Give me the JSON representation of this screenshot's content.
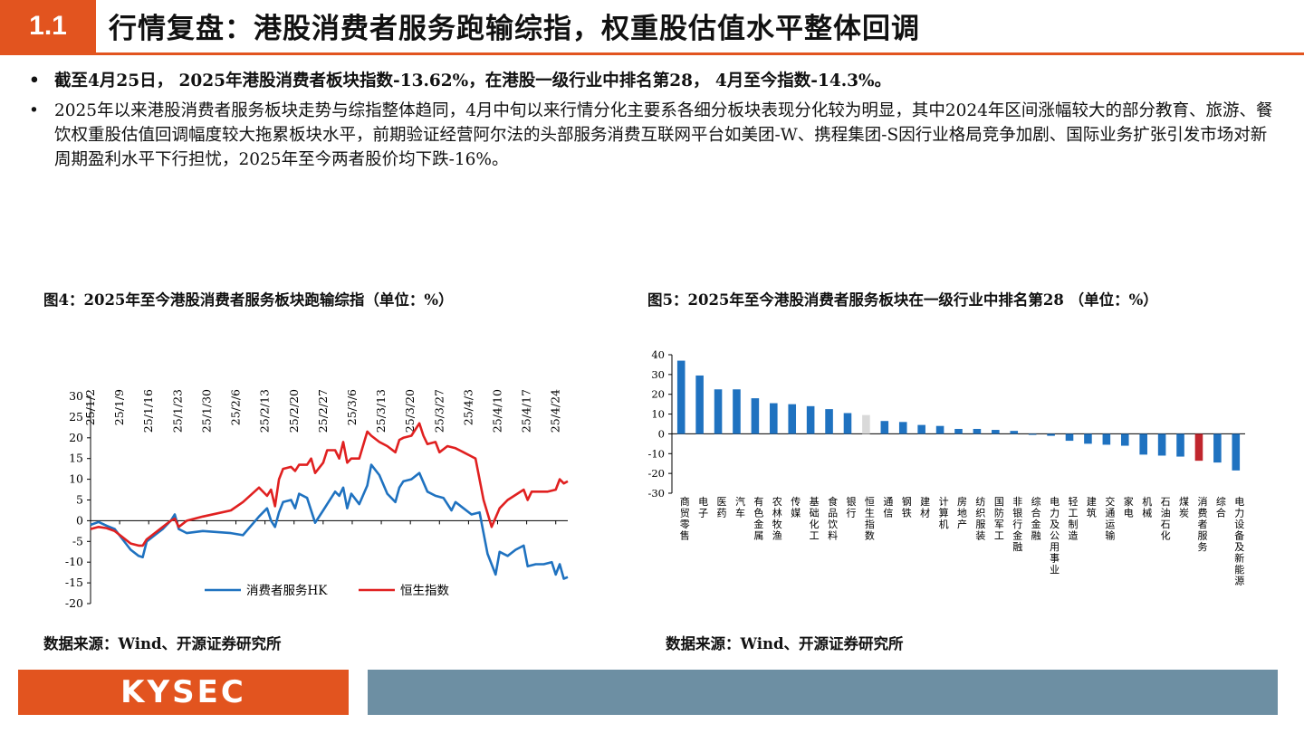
{
  "header": {
    "section_num": "1.1",
    "title": "行情复盘：港股消费者服务跑输综指，权重股估值水平整体回调"
  },
  "bullets": [
    "截至4月25日， 2025年港股消费者板块指数-13.62%，在港股一级行业中排名第28， 4月至今指数-14.3%。",
    "2025年以来港股消费者服务板块走势与综指整体趋同，4月中旬以来行情分化主要系各细分板块表现分化较为明显，其中2024年区间涨幅较大的部分教育、旅游、餐饮权重股估值回调幅度较大拖累板块水平，前期验证经营阿尔法的头部服务消费互联网平台如美团-W、携程集团-S因行业格局竞争加剧、国际业务扩张引发市场对新周期盈利水平下行担忧，2025年至今两者股价均下跌-16%。"
  ],
  "figure4": {
    "title": "图4：2025年至今港股消费者服务板块跑输综指（单位：%）",
    "source": "数据来源：Wind、开源证券研究所"
  },
  "figure5": {
    "title": "图5：2025年至今港股消费者服务板块在一级行业中排名第28 （单位：%）",
    "source": "数据来源：Wind、开源证券研究所"
  },
  "footer": {
    "logo": "KYSEC"
  },
  "chart_data": [
    {
      "type": "line",
      "x_tick_labels": [
        "25/1/2",
        "25/1/9",
        "25/1/16",
        "25/1/23",
        "25/1/30",
        "25/2/6",
        "25/2/13",
        "25/2/20",
        "25/2/27",
        "25/3/6",
        "25/3/13",
        "25/3/20",
        "25/3/27",
        "25/4/3",
        "25/4/10",
        "25/4/17",
        "25/4/24"
      ],
      "ylim": [
        -20,
        30
      ],
      "y_ticks": [
        30,
        25,
        20,
        15,
        10,
        5,
        0,
        -5,
        -10,
        -15,
        -20
      ],
      "legend_position": "bottom",
      "series": [
        {
          "name": "消费者服务HK",
          "color": "#1f72c0",
          "points": [
            [
              0,
              -1
            ],
            [
              2,
              -0.3
            ],
            [
              4,
              -1.2
            ],
            [
              6,
              -2
            ],
            [
              8,
              -4.5
            ],
            [
              10,
              -7
            ],
            [
              12,
              -8.5
            ],
            [
              13,
              -8.8
            ],
            [
              14,
              -5
            ],
            [
              16,
              -3.5
            ],
            [
              18,
              -2
            ],
            [
              20,
              0
            ],
            [
              21,
              1.5
            ],
            [
              22,
              -2
            ],
            [
              24,
              -3
            ],
            [
              28,
              -2.5
            ],
            [
              35,
              -3
            ],
            [
              38,
              -3.5
            ],
            [
              42,
              1
            ],
            [
              44,
              3
            ],
            [
              45,
              0
            ],
            [
              46,
              -1.5
            ],
            [
              47,
              2
            ],
            [
              48,
              4.5
            ],
            [
              50,
              5
            ],
            [
              51,
              3
            ],
            [
              52,
              6.5
            ],
            [
              54,
              5.5
            ],
            [
              56,
              -0.5
            ],
            [
              58,
              2.5
            ],
            [
              59,
              4
            ],
            [
              61,
              7
            ],
            [
              62,
              6
            ],
            [
              63,
              8
            ],
            [
              64,
              3
            ],
            [
              65,
              6.5
            ],
            [
              67,
              4
            ],
            [
              69,
              8.5
            ],
            [
              70,
              13.5
            ],
            [
              72,
              11
            ],
            [
              74,
              6.5
            ],
            [
              76,
              4.5
            ],
            [
              77,
              8
            ],
            [
              78,
              9.5
            ],
            [
              80,
              10
            ],
            [
              82,
              11.5
            ],
            [
              84,
              7
            ],
            [
              86,
              6
            ],
            [
              88,
              5.5
            ],
            [
              90,
              2.5
            ],
            [
              91,
              4.5
            ],
            [
              93,
              3
            ],
            [
              95,
              1.5
            ],
            [
              97,
              2
            ],
            [
              99,
              -8
            ],
            [
              101,
              -13
            ],
            [
              102,
              -7.5
            ],
            [
              104,
              -8.5
            ],
            [
              106,
              -7
            ],
            [
              108,
              -6
            ],
            [
              109,
              -11
            ],
            [
              111,
              -10.5
            ],
            [
              113,
              -10.5
            ],
            [
              115,
              -10
            ],
            [
              116,
              -13
            ],
            [
              117,
              -10.5
            ],
            [
              118,
              -14
            ],
            [
              119,
              -13.6
            ]
          ]
        },
        {
          "name": "恒生指数",
          "color": "#e02020",
          "points": [
            [
              0,
              -2
            ],
            [
              2,
              -1.5
            ],
            [
              4,
              -1.8
            ],
            [
              6,
              -2.5
            ],
            [
              8,
              -4
            ],
            [
              10,
              -5.5
            ],
            [
              12,
              -6
            ],
            [
              13,
              -6
            ],
            [
              14,
              -4.5
            ],
            [
              16,
              -3
            ],
            [
              18,
              -1.5
            ],
            [
              20,
              0
            ],
            [
              21,
              0.5
            ],
            [
              22,
              -1.5
            ],
            [
              24,
              0
            ],
            [
              28,
              1
            ],
            [
              35,
              2.5
            ],
            [
              38,
              4.5
            ],
            [
              42,
              8
            ],
            [
              44,
              6
            ],
            [
              45,
              7.5
            ],
            [
              46,
              3.5
            ],
            [
              47,
              10
            ],
            [
              48,
              12.5
            ],
            [
              50,
              13
            ],
            [
              51,
              12
            ],
            [
              52,
              13.5
            ],
            [
              54,
              13.5
            ],
            [
              55,
              15
            ],
            [
              56,
              11.5
            ],
            [
              58,
              14
            ],
            [
              59,
              17
            ],
            [
              61,
              17
            ],
            [
              62,
              15
            ],
            [
              63,
              19
            ],
            [
              64,
              14
            ],
            [
              65,
              15
            ],
            [
              67,
              15
            ],
            [
              69,
              21.5
            ],
            [
              70,
              20.5
            ],
            [
              72,
              19
            ],
            [
              74,
              18
            ],
            [
              76,
              16.5
            ],
            [
              77,
              19.5
            ],
            [
              78,
              20
            ],
            [
              80,
              20.5
            ],
            [
              82,
              23.5
            ],
            [
              83,
              20.5
            ],
            [
              84,
              18.5
            ],
            [
              86,
              19
            ],
            [
              87,
              16.5
            ],
            [
              89,
              18
            ],
            [
              91,
              17.5
            ],
            [
              93,
              16.5
            ],
            [
              95,
              15.5
            ],
            [
              96,
              15
            ],
            [
              98,
              5
            ],
            [
              100,
              -1.5
            ],
            [
              102,
              3
            ],
            [
              104,
              5
            ],
            [
              108,
              7.5
            ],
            [
              109,
              5
            ],
            [
              110,
              7
            ],
            [
              114,
              7
            ],
            [
              116,
              7.5
            ],
            [
              117,
              10
            ],
            [
              118,
              9
            ],
            [
              119,
              9.5
            ]
          ]
        }
      ]
    },
    {
      "type": "bar",
      "ylim": [
        -30,
        40
      ],
      "y_ticks": [
        40,
        30,
        20,
        10,
        0,
        -10,
        -20,
        -30
      ],
      "categories": [
        "商贸零售",
        "电子",
        "医药",
        "汽车",
        "有色金属",
        "农林牧渔",
        "传媒",
        "基础化工",
        "食品饮料",
        "银行",
        "恒生指数",
        "通信",
        "钢铁",
        "建材",
        "计算机",
        "房地产",
        "纺织服装",
        "国防军工",
        "非银行金融",
        "综合金融",
        "电力及公用事业",
        "轻工制造",
        "建筑",
        "交通运输",
        "家电",
        "机械",
        "石油石化",
        "煤炭",
        "消费者服务",
        "综合",
        "电力设备及新能源"
      ],
      "values": [
        37,
        29.5,
        22.5,
        22.5,
        18,
        15.5,
        15,
        14,
        12.5,
        10.5,
        9.5,
        6.5,
        6,
        4.5,
        4,
        2.5,
        2.5,
        2,
        1.5,
        -0.5,
        -1,
        -3.5,
        -5,
        -5.5,
        -6,
        -10.5,
        -11,
        -11.5,
        -13.6,
        -14.5,
        -18.5
      ],
      "colors": {
        "default": "#1f72c0",
        "恒生指数": "#d9d9d9",
        "消费者服务": "#c0262d"
      }
    }
  ]
}
